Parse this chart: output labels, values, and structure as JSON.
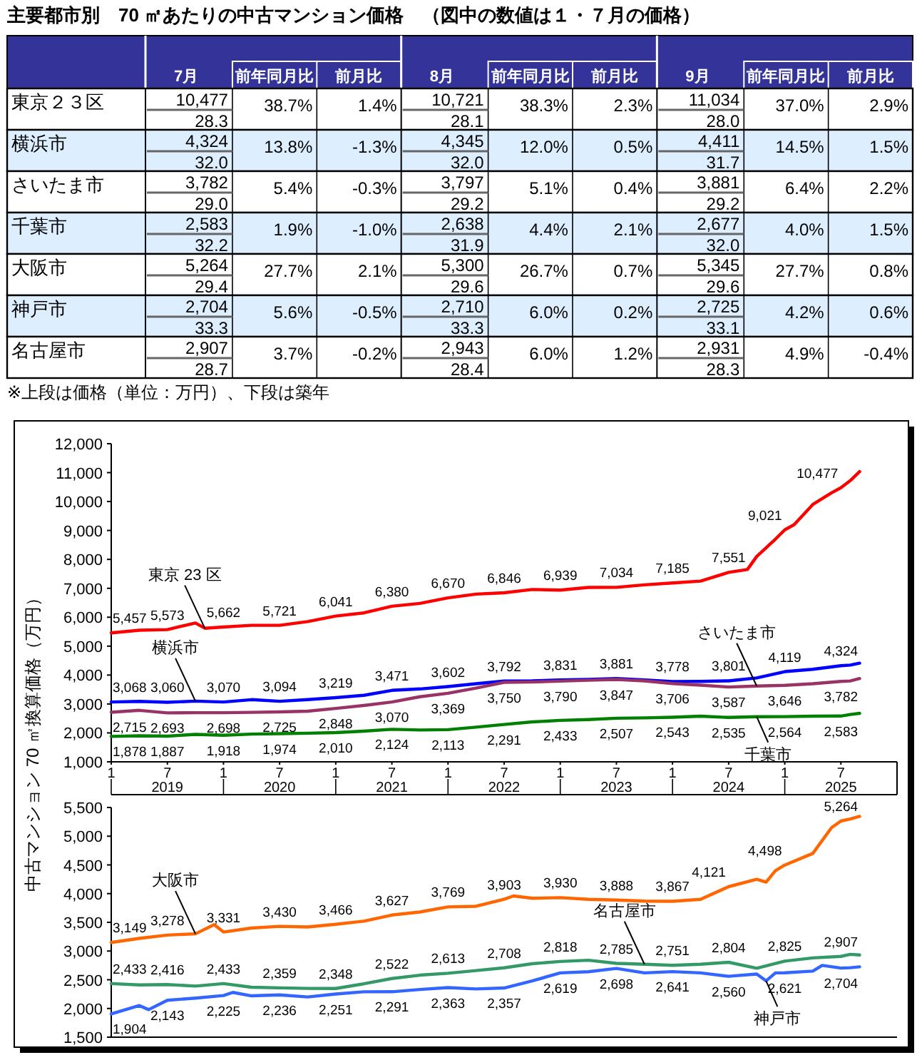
{
  "chart_data": [
    {
      "type": "other",
      "title": "主要都市別　70 ㎡あたりの中古マンション価格　（図中の数値は１・７月の価格）",
      "categories": [
        "7月",
        "前年同月比",
        "前月比",
        "8月",
        "前年同月比",
        "前月比",
        "9月",
        "前年同月比",
        "前月比"
      ],
      "y_categories": [
        "東京２３区",
        null,
        "横浜市",
        null,
        "さいたま市",
        null,
        "千葉市",
        null,
        "大阪市",
        null,
        "神戸市",
        null,
        "名古屋市",
        null
      ],
      "cell_labels": [
        [
          "10,477",
          "38.7%",
          "1.4%",
          "10,721",
          "38.3%",
          "2.3%",
          "11,034",
          "37.0%",
          "2.9%"
        ],
        [
          "28.3",
          null,
          null,
          "28.1",
          null,
          null,
          "28.0",
          null,
          null
        ],
        [
          "4,324",
          "13.8%",
          "-1.3%",
          "4,345",
          "12.0%",
          "0.5%",
          "4,411",
          "14.5%",
          "1.5%"
        ],
        [
          "32.0",
          null,
          null,
          "32.0",
          null,
          null,
          "31.7",
          null,
          null
        ],
        [
          "3,782",
          "5.4%",
          "-0.3%",
          "3,797",
          "5.1%",
          "0.4%",
          "3,881",
          "6.4%",
          "2.2%"
        ],
        [
          "29.0",
          null,
          null,
          "29.2",
          null,
          null,
          "29.2",
          null,
          null
        ],
        [
          "2,583",
          "1.9%",
          "-1.0%",
          "2,638",
          "4.4%",
          "2.1%",
          "2,677",
          "4.0%",
          "1.5%"
        ],
        [
          "32.2",
          null,
          null,
          "31.9",
          null,
          null,
          "32.0",
          null,
          null
        ],
        [
          "5,264",
          "27.7%",
          "2.1%",
          "5,300",
          "26.7%",
          "0.7%",
          "5,345",
          "27.7%",
          "0.8%"
        ],
        [
          "29.4",
          null,
          null,
          "29.6",
          null,
          null,
          "29.6",
          null,
          null
        ],
        [
          "2,704",
          "5.6%",
          "-0.5%",
          "2,710",
          "6.0%",
          "0.2%",
          "2,725",
          "4.2%",
          "0.6%"
        ],
        [
          "33.3",
          null,
          null,
          "33.3",
          null,
          null,
          "33.1",
          null,
          null
        ],
        [
          "2,907",
          "3.7%",
          "-0.2%",
          "2,943",
          "6.0%",
          "1.2%",
          "2,931",
          "4.9%",
          "-0.4%"
        ],
        [
          "28.7",
          null,
          null,
          "28.4",
          null,
          null,
          "28.3",
          null,
          null
        ]
      ],
      "annotations": [
        "※上段は価格（単位：万円）、下段は築年"
      ]
    },
    {
      "type": "line",
      "ylabel": "中古マンション 70 ㎡換算価格（万円）",
      "xlim": [
        "2019-01",
        "2026-01"
      ],
      "xticks": [
        {
          "value": "2019-01",
          "label": "1"
        },
        {
          "value": "2019-07",
          "label": "7"
        },
        {
          "value": "2020-01",
          "label": "1"
        },
        {
          "value": "2020-07",
          "label": "7"
        },
        {
          "value": "2021-01",
          "label": "1"
        },
        {
          "value": "2021-07",
          "label": "7"
        },
        {
          "value": "2022-01",
          "label": "1"
        },
        {
          "value": "2022-07",
          "label": "7"
        },
        {
          "value": "2023-01",
          "label": "1"
        },
        {
          "value": "2023-07",
          "label": "7"
        },
        {
          "value": "2024-01",
          "label": "1"
        },
        {
          "value": "2024-07",
          "label": "7"
        },
        {
          "value": "2025-01",
          "label": "1"
        },
        {
          "value": "2025-07",
          "label": "7"
        }
      ],
      "x2lim": [
        "2019-01",
        "2026-01"
      ],
      "x2ticks": [
        {
          "value": "2019-07",
          "label": "2019"
        },
        {
          "value": "2020-07",
          "label": "2020"
        },
        {
          "value": "2021-07",
          "label": "2021"
        },
        {
          "value": "2022-07",
          "label": "2022"
        },
        {
          "value": "2023-07",
          "label": "2023"
        },
        {
          "value": "2024-07",
          "label": "2024"
        },
        {
          "value": "2025-07",
          "label": "2025"
        }
      ],
      "ylim": [
        1000,
        12000
      ],
      "yticks": [
        {
          "value": 1000,
          "label": "1,000"
        },
        {
          "value": 2000,
          "label": "2,000"
        },
        {
          "value": 3000,
          "label": "3,000"
        },
        {
          "value": 4000,
          "label": "4,000"
        },
        {
          "value": 5000,
          "label": "5,000"
        },
        {
          "value": 6000,
          "label": "6,000"
        },
        {
          "value": 7000,
          "label": "7,000"
        },
        {
          "value": 8000,
          "label": "8,000"
        },
        {
          "value": 9000,
          "label": "9,000"
        },
        {
          "value": 10000,
          "label": "10,000"
        },
        {
          "value": 11000,
          "label": "11,000"
        },
        {
          "value": 12000,
          "label": "12,000"
        }
      ],
      "series": [
        {
          "color": "#ff0000",
          "x": [
            "2019-01",
            "2019-04",
            "2019-07",
            "2019-10",
            "2019-11",
            "2020-01",
            "2020-04",
            "2020-07",
            "2020-10",
            "2021-01",
            "2021-04",
            "2021-07",
            "2021-10",
            "2022-01",
            "2022-04",
            "2022-07",
            "2022-10",
            "2023-01",
            "2023-04",
            "2023-07",
            "2023-10",
            "2024-01",
            "2024-04",
            "2024-07",
            "2024-09",
            "2024-10",
            "2024-12",
            "2025-01",
            "2025-02",
            "2025-04",
            "2025-06",
            "2025-07",
            "2025-08",
            "2025-09"
          ],
          "values": [
            5457,
            5550,
            5573,
            5800,
            5620,
            5662,
            5720,
            5721,
            5850,
            6041,
            6150,
            6380,
            6480,
            6670,
            6800,
            6846,
            6960,
            6939,
            7030,
            7034,
            7120,
            7185,
            7250,
            7551,
            7650,
            8100,
            8700,
            9021,
            9200,
            9900,
            10300,
            10477,
            10721,
            11034
          ],
          "value_labels": [
            "5,457",
            null,
            "5,573",
            null,
            null,
            "5,662",
            null,
            "5,721",
            null,
            "6,041",
            null,
            "6,380",
            null,
            "6,670",
            null,
            "6,846",
            null,
            "6,939",
            null,
            "7,034",
            null,
            "7,185",
            null,
            "7,551",
            null,
            null,
            null,
            "9,021",
            null,
            null,
            null,
            "10,477",
            null,
            null
          ]
        },
        {
          "color": "#0000ff",
          "x": [
            "2019-01",
            "2019-04",
            "2019-07",
            "2019-10",
            "2020-01",
            "2020-04",
            "2020-07",
            "2020-10",
            "2021-01",
            "2021-04",
            "2021-07",
            "2021-10",
            "2022-01",
            "2022-04",
            "2022-07",
            "2022-10",
            "2023-01",
            "2023-04",
            "2023-07",
            "2023-10",
            "2024-01",
            "2024-04",
            "2024-07",
            "2024-10",
            "2025-01",
            "2025-04",
            "2025-07",
            "2025-08",
            "2025-09"
          ],
          "values": [
            3068,
            3090,
            3060,
            3100,
            3070,
            3150,
            3094,
            3150,
            3219,
            3300,
            3471,
            3520,
            3602,
            3700,
            3792,
            3800,
            3831,
            3850,
            3881,
            3830,
            3778,
            3780,
            3801,
            3900,
            4119,
            4200,
            4324,
            4345,
            4411
          ],
          "value_labels": [
            "3,068",
            null,
            "3,060",
            null,
            "3,070",
            null,
            "3,094",
            null,
            "3,219",
            null,
            "3,471",
            null,
            "3,602",
            null,
            "3,792",
            null,
            "3,831",
            null,
            "3,881",
            null,
            "3,778",
            null,
            "3,801",
            null,
            "4,119",
            null,
            "4,324",
            null,
            null
          ]
        },
        {
          "color": "#993366",
          "x": [
            "2019-01",
            "2019-04",
            "2019-07",
            "2019-10",
            "2020-01",
            "2020-04",
            "2020-07",
            "2020-10",
            "2021-01",
            "2021-04",
            "2021-07",
            "2021-10",
            "2022-01",
            "2022-04",
            "2022-07",
            "2022-10",
            "2023-01",
            "2023-04",
            "2023-07",
            "2023-10",
            "2024-01",
            "2024-04",
            "2024-07",
            "2024-10",
            "2025-01",
            "2025-04",
            "2025-07",
            "2025-08",
            "2025-09"
          ],
          "values": [
            2715,
            2780,
            2693,
            2700,
            2698,
            2710,
            2725,
            2750,
            2848,
            2950,
            3070,
            3250,
            3369,
            3550,
            3750,
            3760,
            3790,
            3820,
            3847,
            3800,
            3706,
            3650,
            3587,
            3620,
            3646,
            3700,
            3782,
            3797,
            3881
          ],
          "value_labels": [
            "2,715",
            null,
            "2,693",
            null,
            "2,698",
            null,
            "2,725",
            null,
            "2,848",
            null,
            "3,070",
            null,
            "3,369",
            null,
            "3,750",
            null,
            "3,790",
            null,
            "3,847",
            null,
            "3,706",
            null,
            "3,587",
            null,
            "3,646",
            null,
            "3,782",
            null,
            null
          ]
        },
        {
          "color": "#008000",
          "x": [
            "2019-01",
            "2019-04",
            "2019-07",
            "2019-10",
            "2020-01",
            "2020-04",
            "2020-07",
            "2020-10",
            "2021-01",
            "2021-04",
            "2021-07",
            "2021-10",
            "2022-01",
            "2022-04",
            "2022-07",
            "2022-10",
            "2023-01",
            "2023-04",
            "2023-07",
            "2023-10",
            "2024-01",
            "2024-04",
            "2024-07",
            "2024-10",
            "2025-01",
            "2025-04",
            "2025-07",
            "2025-08",
            "2025-09"
          ],
          "values": [
            1878,
            1900,
            1887,
            1950,
            1918,
            1960,
            1974,
            1990,
            2010,
            2060,
            2124,
            2100,
            2113,
            2200,
            2291,
            2380,
            2433,
            2460,
            2507,
            2520,
            2543,
            2580,
            2535,
            2560,
            2564,
            2580,
            2583,
            2638,
            2677
          ],
          "value_labels": [
            "1,878",
            null,
            "1,887",
            null,
            "1,918",
            null,
            "1,974",
            null,
            "2,010",
            null,
            "2,124",
            null,
            "2,113",
            null,
            "2,291",
            null,
            "2,433",
            null,
            "2,507",
            null,
            "2,543",
            null,
            "2,535",
            null,
            "2,564",
            null,
            "2,583",
            null,
            null
          ]
        }
      ],
      "annotations": [
        {
          "text": "東京 23 区",
          "x": "2019-11",
          "y": 5620
        },
        {
          "text": "横浜市",
          "x": "2019-10",
          "y": 3100
        },
        {
          "text": "さいたま市",
          "x": "2024-10",
          "y": 3620
        },
        {
          "text": "千葉市",
          "x": "2024-10",
          "y": 2560
        }
      ]
    },
    {
      "type": "line",
      "tick_labels": "y",
      "xlim": [
        "2019-01",
        "2026-01"
      ],
      "ylim": [
        1500,
        5500
      ],
      "yticks": [
        {
          "value": 1500,
          "label": "1,500"
        },
        {
          "value": 2000,
          "label": "2,000"
        },
        {
          "value": 2500,
          "label": "2,500"
        },
        {
          "value": 3000,
          "label": "3,000"
        },
        {
          "value": 3500,
          "label": "3,500"
        },
        {
          "value": 4000,
          "label": "4,000"
        },
        {
          "value": 4500,
          "label": "4,500"
        },
        {
          "value": 5000,
          "label": "5,000"
        },
        {
          "value": 5500,
          "label": "5,500"
        }
      ],
      "series": [
        {
          "color": "#ff6600",
          "x": [
            "2019-01",
            "2019-04",
            "2019-07",
            "2019-10",
            "2019-12",
            "2020-01",
            "2020-04",
            "2020-07",
            "2020-10",
            "2021-01",
            "2021-04",
            "2021-07",
            "2021-10",
            "2022-01",
            "2022-04",
            "2022-07",
            "2022-08",
            "2022-10",
            "2023-01",
            "2023-04",
            "2023-07",
            "2023-10",
            "2024-01",
            "2024-04",
            "2024-07",
            "2024-10",
            "2024-11",
            "2024-12",
            "2025-01",
            "2025-04",
            "2025-06",
            "2025-07",
            "2025-08",
            "2025-09"
          ],
          "values": [
            3149,
            3220,
            3278,
            3300,
            3460,
            3331,
            3400,
            3430,
            3420,
            3466,
            3520,
            3627,
            3680,
            3769,
            3780,
            3903,
            3960,
            3920,
            3930,
            3900,
            3888,
            3870,
            3867,
            3900,
            4121,
            4250,
            4200,
            4400,
            4498,
            4700,
            5150,
            5264,
            5300,
            5345
          ],
          "value_labels": [
            "3,149",
            null,
            "3,278",
            null,
            null,
            "3,331",
            null,
            "3,430",
            null,
            "3,466",
            null,
            "3,627",
            null,
            "3,769",
            null,
            "3,903",
            null,
            null,
            "3,930",
            null,
            "3,888",
            null,
            "3,867",
            null,
            "4,121",
            null,
            null,
            null,
            "4,498",
            null,
            null,
            "5,264",
            null,
            null
          ]
        },
        {
          "color": "#339966",
          "x": [
            "2019-01",
            "2019-04",
            "2019-07",
            "2019-10",
            "2020-01",
            "2020-04",
            "2020-07",
            "2020-10",
            "2021-01",
            "2021-04",
            "2021-07",
            "2021-10",
            "2022-01",
            "2022-04",
            "2022-07",
            "2022-10",
            "2023-01",
            "2023-04",
            "2023-07",
            "2023-10",
            "2024-01",
            "2024-04",
            "2024-07",
            "2024-10",
            "2025-01",
            "2025-04",
            "2025-07",
            "2025-08",
            "2025-09"
          ],
          "values": [
            2433,
            2410,
            2416,
            2390,
            2433,
            2370,
            2359,
            2350,
            2348,
            2430,
            2522,
            2580,
            2613,
            2660,
            2708,
            2780,
            2818,
            2840,
            2785,
            2770,
            2751,
            2770,
            2804,
            2700,
            2825,
            2880,
            2907,
            2943,
            2931
          ],
          "value_labels": [
            "2,433",
            null,
            "2,416",
            null,
            "2,433",
            null,
            "2,359",
            null,
            "2,348",
            null,
            "2,522",
            null,
            "2,613",
            null,
            "2,708",
            null,
            "2,818",
            null,
            "2,785",
            null,
            "2,751",
            null,
            "2,804",
            null,
            "2,825",
            null,
            "2,907",
            null,
            null
          ]
        },
        {
          "color": "#3366ff",
          "x": [
            "2019-01",
            "2019-04",
            "2019-05",
            "2019-07",
            "2019-10",
            "2020-01",
            "2020-02",
            "2020-04",
            "2020-07",
            "2020-10",
            "2021-01",
            "2021-04",
            "2021-07",
            "2021-10",
            "2022-01",
            "2022-04",
            "2022-07",
            "2022-10",
            "2023-01",
            "2023-04",
            "2023-07",
            "2023-10",
            "2024-01",
            "2024-04",
            "2024-07",
            "2024-10",
            "2024-11",
            "2024-12",
            "2025-01",
            "2025-04",
            "2025-05",
            "2025-07",
            "2025-08",
            "2025-09"
          ],
          "values": [
            1904,
            2050,
            1980,
            2143,
            2180,
            2225,
            2280,
            2220,
            2236,
            2200,
            2251,
            2290,
            2291,
            2330,
            2363,
            2340,
            2357,
            2480,
            2619,
            2640,
            2698,
            2620,
            2641,
            2620,
            2560,
            2600,
            2480,
            2620,
            2621,
            2650,
            2750,
            2704,
            2710,
            2725
          ],
          "value_labels": [
            "1,904",
            null,
            null,
            "2,143",
            null,
            "2,225",
            null,
            null,
            "2,236",
            null,
            "2,251",
            null,
            "2,291",
            null,
            "2,363",
            null,
            "2,357",
            null,
            "2,619",
            null,
            "2,698",
            null,
            "2,641",
            null,
            "2,560",
            null,
            null,
            null,
            "2,621",
            null,
            null,
            "2,704",
            null,
            null
          ]
        }
      ],
      "annotations": [
        {
          "text": "大阪市",
          "x": "2019-10",
          "y": 3300
        },
        {
          "text": "名古屋市",
          "x": "2023-10",
          "y": 2770
        },
        {
          "text": "神戸市",
          "x": "2024-11",
          "y": 2480
        }
      ]
    }
  ]
}
